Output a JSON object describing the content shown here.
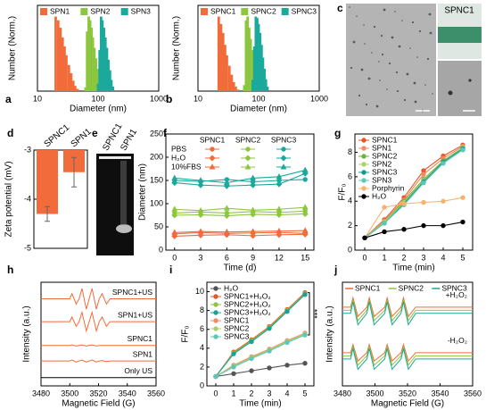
{
  "chart_data": [
    {
      "panel": "a",
      "type": "bar",
      "xlabel": "Diameter (nm)",
      "ylabel": "Number (Norm.)",
      "xscale": "log",
      "xlim": [
        10,
        1000
      ],
      "xticks": [
        10,
        100,
        1000
      ],
      "ylim": [
        0,
        115
      ],
      "legend": "top",
      "series": [
        {
          "name": "SPN1",
          "color": "#f26b3a",
          "x": [
            20,
            22,
            24,
            26,
            28,
            30,
            33,
            36,
            39,
            42,
            46
          ],
          "values": [
            100,
            95,
            85,
            72,
            60,
            48,
            35,
            24,
            14,
            7,
            3
          ]
        },
        {
          "name": "SPN2",
          "color": "#8dc63f",
          "x": [
            62,
            66,
            70,
            74,
            78,
            82,
            87,
            92,
            97,
            102,
            108
          ],
          "values": [
            5,
            80,
            100,
            95,
            85,
            72,
            58,
            44,
            30,
            18,
            8
          ]
        },
        {
          "name": "SPN3",
          "color": "#1aa99a",
          "x": [
            100,
            106,
            112,
            118,
            125,
            132,
            140,
            148,
            157,
            166,
            176
          ],
          "values": [
            10,
            55,
            100,
            95,
            85,
            72,
            58,
            42,
            28,
            15,
            6
          ]
        }
      ]
    },
    {
      "panel": "b",
      "type": "bar",
      "xlabel": "Diameter (nm)",
      "ylabel": "Number (Norm.)",
      "xscale": "log",
      "xlim": [
        10,
        1000
      ],
      "xticks": [
        10,
        100,
        1000
      ],
      "ylim": [
        0,
        115
      ],
      "legend": "top",
      "series": [
        {
          "name": "SPNC1",
          "color": "#f26b3a",
          "x": [
            22,
            24,
            26,
            28,
            30,
            33,
            36,
            39,
            42,
            46
          ],
          "values": [
            100,
            90,
            78,
            62,
            48,
            34,
            22,
            12,
            6,
            2
          ]
        },
        {
          "name": "SPNC2",
          "color": "#8dc63f",
          "x": [
            58,
            62,
            66,
            70,
            74,
            78,
            83,
            88,
            93,
            99
          ],
          "values": [
            8,
            95,
            100,
            85,
            70,
            55,
            38,
            24,
            12,
            5
          ]
        },
        {
          "name": "SPNC3",
          "color": "#1aa99a",
          "x": [
            80,
            85,
            90,
            95,
            100,
            106,
            112,
            118,
            125,
            132,
            140
          ],
          "values": [
            15,
            60,
            100,
            98,
            90,
            78,
            62,
            45,
            30,
            16,
            6
          ]
        }
      ]
    },
    {
      "panel": "c",
      "type": "image",
      "labels": [
        "SPNC1"
      ]
    },
    {
      "panel": "d",
      "type": "bar",
      "ylabel": "Zeta potential (mV)",
      "categories": [
        "SPNC1",
        "SPN1"
      ],
      "values": [
        -4.3,
        -3.45
      ],
      "errors": [
        0.15,
        0.3
      ],
      "color": "#f26b3a",
      "ylim": [
        -5,
        -3
      ],
      "yticks": [
        -3,
        -4,
        -5
      ]
    },
    {
      "panel": "e",
      "type": "image",
      "labels": [
        "SPNC1",
        "SPN1"
      ]
    },
    {
      "panel": "f",
      "type": "line",
      "xlabel": "Time (d)",
      "ylabel": "Diameter (nm)",
      "x": [
        0,
        3,
        6,
        9,
        12,
        15
      ],
      "xlim": [
        -1,
        16
      ],
      "xticks": [
        0,
        3,
        6,
        9,
        12,
        15
      ],
      "ylim": [
        0,
        250
      ],
      "yticks": [
        0,
        50,
        100,
        150,
        200,
        250
      ],
      "markers": true,
      "legend": "table",
      "conditions": [
        "PBS",
        "H₂O",
        "10%FBS"
      ],
      "series": [
        {
          "name": "SPNC1",
          "color": "#f26b3a",
          "values": [
            [
              35,
              38,
              36,
              37,
              38,
              36
            ],
            [
              30,
              32,
              33,
              31,
              33,
              34
            ],
            [
              38,
              40,
              39,
              40,
              41,
              42
            ]
          ]
        },
        {
          "name": "SPNC2",
          "color": "#8dc63f",
          "values": [
            [
              80,
              82,
              80,
              83,
              81,
              84
            ],
            [
              75,
              76,
              74,
              77,
              76,
              78
            ],
            [
              88,
              85,
              90,
              86,
              88,
              92
            ]
          ]
        },
        {
          "name": "SPNC3",
          "color": "#1aa99a",
          "values": [
            [
              150,
              148,
              152,
              147,
              150,
              152
            ],
            [
              145,
              140,
              138,
              140,
              142,
              165
            ],
            [
              155,
              150,
              145,
              155,
              158,
              172
            ]
          ]
        }
      ]
    },
    {
      "panel": "g",
      "type": "line",
      "xlabel": "Time (min)",
      "ylabel": "F/F₀",
      "x": [
        0,
        1,
        2,
        3,
        4,
        5
      ],
      "xlim": [
        -0.5,
        5.5
      ],
      "xticks": [
        0,
        1,
        2,
        3,
        4,
        5
      ],
      "ylim": [
        0,
        9.5
      ],
      "yticks": [
        0,
        2,
        4,
        6,
        8
      ],
      "markers": true,
      "legend": "top-left",
      "series": [
        {
          "name": "SPNC1",
          "color": "#e8562a",
          "values": [
            1,
            2.5,
            4.3,
            6.5,
            7.7,
            8.6
          ]
        },
        {
          "name": "SPN1",
          "color": "#f28b5f",
          "values": [
            1,
            2.4,
            4.1,
            6.2,
            7.5,
            8.5
          ]
        },
        {
          "name": "SPNC2",
          "color": "#6fb33f",
          "values": [
            1,
            2.3,
            4,
            5.8,
            7.3,
            8.4
          ]
        },
        {
          "name": "SPN2",
          "color": "#a6d46a",
          "values": [
            1,
            2.3,
            3.9,
            5.7,
            7.2,
            8.4
          ]
        },
        {
          "name": "SPNC3",
          "color": "#17988c",
          "values": [
            1,
            2.2,
            3.8,
            5.6,
            7.2,
            8.3
          ]
        },
        {
          "name": "SPN3",
          "color": "#5cc7b8",
          "values": [
            1,
            2.2,
            3.7,
            5.5,
            7.1,
            8.2
          ]
        },
        {
          "name": "Porphyrin",
          "color": "#f7b36b",
          "values": [
            1,
            3.5,
            3.8,
            3.9,
            4,
            4.3
          ]
        },
        {
          "name": "H₂O",
          "color": "#000000",
          "values": [
            1,
            1.5,
            1.7,
            2,
            2,
            2.3
          ]
        }
      ]
    },
    {
      "panel": "h",
      "type": "line",
      "xlabel": "Magnetic Field (G)",
      "ylabel": "Intensity (a.u.)",
      "x": [
        3480,
        3500,
        3501.5,
        3504.5,
        3506.5,
        3508.5,
        3511.5,
        3513.5,
        3515.5,
        3518.5,
        3520.5,
        3522.5,
        3525.5,
        3528,
        3560
      ],
      "xlim": [
        3480,
        3560
      ],
      "xticks": [
        3480,
        3500,
        3520,
        3540,
        3560
      ],
      "ylim": [
        0,
        10
      ],
      "markers": false,
      "legend": "inline",
      "series": [
        {
          "name": "SPNC1+US",
          "color": "#f26b3a",
          "values": [
            8.4,
            8.4,
            8.9,
            7.9,
            8.4,
            9.4,
            7.4,
            8.4,
            9.4,
            7.4,
            8.4,
            8.9,
            7.9,
            8.4,
            8.4
          ]
        },
        {
          "name": "SPN1+US",
          "color": "#f26b3a",
          "values": [
            6.2,
            6.2,
            6.65,
            5.75,
            6.2,
            7.1,
            5.3,
            6.2,
            7.1,
            5.3,
            6.2,
            6.65,
            5.75,
            6.2,
            6.2
          ]
        },
        {
          "name": "SPNC1",
          "color": "#f26b3a",
          "values": [
            3.9,
            3.9,
            3.95,
            3.85,
            3.9,
            3.95,
            3.85,
            3.9,
            3.95,
            3.85,
            3.9,
            3.9,
            3.9,
            3.9,
            3.9
          ]
        },
        {
          "name": "SPN1",
          "color": "#f26b3a",
          "values": [
            2.4,
            2.4,
            2.5,
            2.3,
            2.4,
            2.5,
            2.3,
            2.4,
            2.5,
            2.3,
            2.4,
            2.45,
            2.35,
            2.4,
            2.4
          ]
        },
        {
          "name": "Only US",
          "color": "#000000",
          "values": [
            0.8,
            0.8,
            0.8,
            0.8,
            0.8,
            0.8,
            0.8,
            0.8,
            0.8,
            0.8,
            0.8,
            0.8,
            0.8,
            0.8,
            0.8
          ]
        }
      ]
    },
    {
      "panel": "i",
      "type": "line",
      "xlabel": "Time (min)",
      "ylabel": "F/F₀",
      "x": [
        0,
        1,
        2,
        3,
        4,
        5
      ],
      "xlim": [
        -0.5,
        5.5
      ],
      "xticks": [
        0,
        1,
        2,
        3,
        4,
        5
      ],
      "ylim": [
        0,
        11
      ],
      "yticks": [
        0,
        2,
        4,
        6,
        8,
        10
      ],
      "markers": true,
      "legend": "top-left",
      "annotation": "***",
      "series": [
        {
          "name": "H₂O",
          "color": "#555555",
          "values": [
            1,
            1.3,
            1.6,
            1.9,
            2.2,
            2.4
          ]
        },
        {
          "name": "SPNC1+H₂O₂",
          "color": "#e8562a",
          "values": [
            1,
            3.6,
            4.9,
            6.3,
            8.1,
            9.9
          ]
        },
        {
          "name": "SPNC2+H₂O₂",
          "color": "#8dc63f",
          "values": [
            1,
            3.5,
            4.8,
            6.2,
            8,
            9.8
          ]
        },
        {
          "name": "SPNC3+H₂O₂",
          "color": "#17a397",
          "values": [
            1,
            3.4,
            4.7,
            6.1,
            7.9,
            9.7
          ]
        },
        {
          "name": "SPNC1",
          "color": "#f28b5f",
          "values": [
            1,
            2.2,
            3.1,
            3.9,
            4.8,
            5.6
          ]
        },
        {
          "name": "SPNC2",
          "color": "#a6d46a",
          "values": [
            1,
            2.1,
            3,
            3.8,
            4.7,
            5.5
          ]
        },
        {
          "name": "SPNC3",
          "color": "#5cc7b8",
          "values": [
            1,
            2,
            2.9,
            3.7,
            4.6,
            5.4
          ]
        }
      ]
    },
    {
      "panel": "j",
      "type": "line",
      "xlabel": "Magnetic Field (G)",
      "ylabel": "Intensity (a.u.)",
      "x": [
        3480,
        3485,
        3486.5,
        3489.5,
        3495,
        3496.5,
        3499.5,
        3506,
        3507.5,
        3510.5,
        3516,
        3517.5,
        3520.5,
        3525,
        3560
      ],
      "xlim": [
        3480,
        3560
      ],
      "xticks": [
        3480,
        3500,
        3520,
        3540,
        3560
      ],
      "ylim": [
        0,
        10
      ],
      "markers": false,
      "legend": "top",
      "conditions": [
        "+H₂O₂",
        "-H₂O₂"
      ],
      "series": [
        {
          "name": "SPNC1",
          "color": "#f26b3a",
          "values": [
            [
              7.6,
              7.6,
              8.5,
              6.7,
              7.6,
              8.5,
              6.7,
              7.6,
              8.5,
              6.7,
              7.6,
              8.5,
              6.7,
              7.6,
              7.6
            ],
            [
              3.2,
              3.2,
              4.0,
              2.4,
              3.2,
              4.0,
              2.4,
              3.2,
              4.0,
              2.4,
              3.2,
              4.0,
              2.4,
              3.2,
              3.2
            ]
          ]
        },
        {
          "name": "SPNC2",
          "color": "#8dc63f",
          "values": [
            [
              7.3,
              7.3,
              8.3,
              6.3,
              7.3,
              8.3,
              6.3,
              7.3,
              8.3,
              6.3,
              7.3,
              8.3,
              6.3,
              7.3,
              7.3
            ],
            [
              2.9,
              2.9,
              3.8,
              2.0,
              2.9,
              3.8,
              2.0,
              2.9,
              3.8,
              2.0,
              2.9,
              3.8,
              2.0,
              2.9,
              2.9
            ]
          ]
        },
        {
          "name": "SPNC3",
          "color": "#1aa99a",
          "values": [
            [
              7.0,
              7.0,
              8.1,
              5.9,
              7.0,
              8.1,
              5.9,
              7.0,
              8.1,
              5.9,
              7.0,
              8.1,
              5.9,
              7.0,
              7.0
            ],
            [
              2.6,
              2.6,
              3.6,
              1.6,
              2.6,
              3.6,
              1.6,
              2.6,
              3.6,
              1.6,
              2.6,
              3.6,
              1.6,
              2.6,
              2.6
            ]
          ]
        }
      ]
    }
  ]
}
